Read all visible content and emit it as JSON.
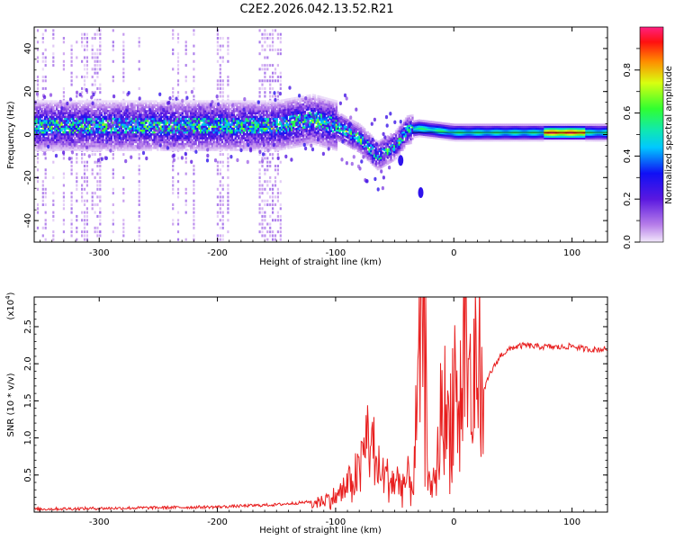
{
  "title": "C2E2.2026.042.13.52.R21",
  "colors": {
    "snr_line": "#e81e1e",
    "background": "#ffffff",
    "axis": "#000000"
  },
  "chart_data": [
    {
      "type": "heatmap",
      "xlabel": "Height of straight line (km)",
      "ylabel": "Frequency (Hz)",
      "xlim": [
        -355,
        130
      ],
      "ylim": [
        -50,
        50
      ],
      "xticks": [
        -300,
        -200,
        -100,
        0,
        100
      ],
      "yticks": [
        -40,
        -20,
        0,
        20,
        40
      ],
      "colorbar": {
        "label": "Normalized spectral amplitude",
        "ticks": [
          0.0,
          0.2,
          0.4,
          0.6,
          0.8
        ],
        "range": [
          0,
          1
        ]
      },
      "dominant_ridge": {
        "description_points": [
          {
            "x": -350,
            "y": 4
          },
          {
            "x": -300,
            "y": 4
          },
          {
            "x": -250,
            "y": 4
          },
          {
            "x": -200,
            "y": 4
          },
          {
            "x": -150,
            "y": 4
          },
          {
            "x": -120,
            "y": 7
          },
          {
            "x": -100,
            "y": 4
          },
          {
            "x": -80,
            "y": -2
          },
          {
            "x": -65,
            "y": -10
          },
          {
            "x": -50,
            "y": -5
          },
          {
            "x": -40,
            "y": 2
          },
          {
            "x": -30,
            "y": 3
          },
          {
            "x": 0,
            "y": 1
          },
          {
            "x": 50,
            "y": 1
          },
          {
            "x": 90,
            "y": 1
          },
          {
            "x": 130,
            "y": 1
          }
        ]
      },
      "secondary_features": [
        {
          "x": -28,
          "y": -27
        },
        {
          "x": -45,
          "y": -12
        }
      ]
    },
    {
      "type": "line",
      "xlabel": "Height of straight line (km)",
      "ylabel": "SNR (10 * v/v)",
      "scale_label": "(x10",
      "scale_exponent": "4",
      "scale_suffix": ")",
      "xlim": [
        -355,
        130
      ],
      "ylim": [
        0,
        2.9
      ],
      "xticks": [
        -300,
        -200,
        -100,
        0,
        100
      ],
      "yticks": [
        0.5,
        1.0,
        1.5,
        2.0,
        2.5
      ],
      "series": [
        {
          "name": "SNR",
          "x": [
            -355,
            -300,
            -250,
            -200,
            -150,
            -120,
            -100,
            -90,
            -80,
            -72,
            -65,
            -55,
            -45,
            -35,
            -30,
            -27,
            -25,
            -22,
            -20,
            -15,
            -10,
            -5,
            0,
            5,
            10,
            15,
            20,
            25,
            30,
            40,
            50,
            60,
            70,
            80,
            90,
            100,
            110,
            120,
            130
          ],
          "values": [
            0.02,
            0.03,
            0.04,
            0.05,
            0.08,
            0.12,
            0.2,
            0.35,
            0.55,
            1.1,
            0.55,
            0.45,
            0.4,
            0.4,
            1.5,
            2.6,
            2.0,
            1.2,
            0.2,
            0.5,
            1.5,
            1.1,
            1.8,
            1.3,
            2.5,
            1.4,
            2.05,
            1.6,
            1.85,
            2.12,
            2.22,
            2.25,
            2.23,
            2.23,
            2.22,
            2.24,
            2.2,
            2.19,
            2.2
          ]
        }
      ]
    }
  ]
}
